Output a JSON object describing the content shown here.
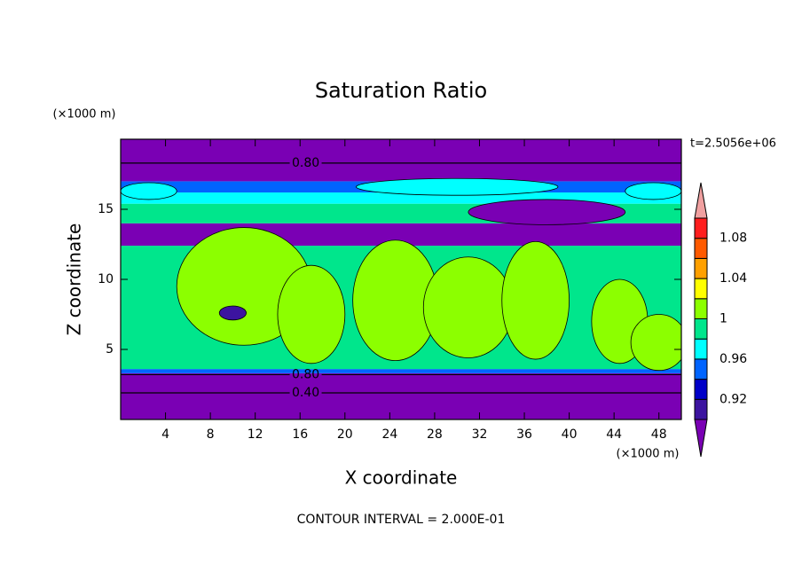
{
  "chart_data": {
    "type": "contour",
    "title": "Saturation Ratio",
    "xlabel": "X coordinate",
    "ylabel": "Z coordinate",
    "x_unit": "(×1000 m)",
    "y_unit": "(×1000 m)",
    "time_label": "t=2.5056e+06",
    "footer": "CONTOUR INTERVAL = 2.000E-01",
    "xlim": [
      0,
      50
    ],
    "ylim": [
      0,
      20
    ],
    "xticks": [
      4,
      8,
      12,
      16,
      20,
      24,
      28,
      32,
      36,
      40,
      44,
      48
    ],
    "yticks": [
      5,
      10,
      15
    ],
    "colorbar": {
      "levels": [
        0.9,
        0.92,
        0.94,
        0.96,
        0.98,
        1,
        1.02,
        1.04,
        1.06,
        1.08,
        1.1
      ],
      "colors": [
        "#7a00b4",
        "#3c14a0",
        "#0000c8",
        "#0064ff",
        "#00ffff",
        "#00e68c",
        "#8cff00",
        "#ffff00",
        "#ffa000",
        "#ff5a00",
        "#ff1e1e",
        "#f0a0a0"
      ],
      "ticks": [
        0.92,
        0.96,
        1,
        1.04,
        1.08
      ]
    },
    "layers": [
      {
        "z": [
          0,
          3.3
        ],
        "value": 0.5
      },
      {
        "z": [
          3.3,
          3.6
        ],
        "value": 0.95
      },
      {
        "z": [
          3.6,
          12.4
        ],
        "value": 0.99
      },
      {
        "z": [
          12.4,
          14
        ],
        "value": 0.85
      },
      {
        "z": [
          14,
          15.4
        ],
        "value": 0.99
      },
      {
        "z": [
          15.4,
          16.2
        ],
        "value": 0.97
      },
      {
        "z": [
          16.2,
          17
        ],
        "value": 0.95
      },
      {
        "z": [
          17,
          20
        ],
        "value": 0.8
      }
    ],
    "blobs": [
      {
        "x": 11,
        "z": 9.5,
        "rx": 6,
        "rz": 4.2,
        "value": 1.01
      },
      {
        "x": 17,
        "z": 7.5,
        "rx": 3,
        "rz": 3.5,
        "value": 1.01
      },
      {
        "x": 24.5,
        "z": 8.5,
        "rx": 3.8,
        "rz": 4.3,
        "value": 1.01
      },
      {
        "x": 31,
        "z": 8,
        "rx": 4,
        "rz": 3.6,
        "value": 1.01
      },
      {
        "x": 37,
        "z": 8.5,
        "rx": 3,
        "rz": 4.2,
        "value": 1.01
      },
      {
        "x": 44.5,
        "z": 7,
        "rx": 2.5,
        "rz": 3,
        "value": 1.01
      },
      {
        "x": 48,
        "z": 5.5,
        "rx": 2.5,
        "rz": 2,
        "value": 1.01
      },
      {
        "x": 10,
        "z": 7.6,
        "rx": 1.2,
        "rz": 0.5,
        "value": 0.91
      },
      {
        "x": 2.5,
        "z": 16.3,
        "rx": 2.5,
        "rz": 0.6,
        "value": 0.97
      },
      {
        "x": 47.5,
        "z": 16.3,
        "rx": 2.5,
        "rz": 0.6,
        "value": 0.97
      },
      {
        "x": 30,
        "z": 16.6,
        "rx": 9,
        "rz": 0.6,
        "value": 0.97
      },
      {
        "x": 38,
        "z": 14.8,
        "rx": 7,
        "rz": 0.9,
        "value": 0.85
      }
    ],
    "contours": [
      {
        "value": 0.8,
        "label": "0.80",
        "z": 18.3
      },
      {
        "value": 0.8,
        "label": "0.80",
        "z": 3.2
      },
      {
        "value": 0.4,
        "label": "0.40",
        "z": 1.9
      }
    ]
  }
}
